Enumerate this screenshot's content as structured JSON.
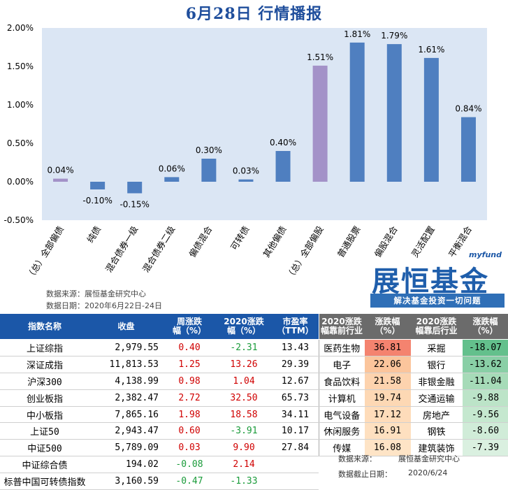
{
  "title": "6月28日  行情播报",
  "chart_data": {
    "type": "bar",
    "categories": [
      "（总）全部偏债",
      "纯债",
      "混合债券一级",
      "混合债券二级",
      "偏债混合",
      "可转债",
      "其他偏债",
      "（总）全部偏股",
      "普通股票",
      "偏股混合",
      "灵活配置",
      "平衡混合"
    ],
    "values": [
      0.04,
      -0.1,
      -0.15,
      0.06,
      0.3,
      0.03,
      0.4,
      1.51,
      1.81,
      1.79,
      1.61,
      0.84
    ],
    "data_labels": [
      "0.04%",
      "-0.10%",
      "-0.15%",
      "0.06%",
      "0.30%",
      "0.03%",
      "0.40%",
      "1.51%",
      "1.81%",
      "1.79%",
      "1.61%",
      "0.84%"
    ],
    "highlight_indices": [
      0,
      7
    ],
    "ylim": [
      -0.5,
      2.0
    ],
    "yticks": [
      2.0,
      1.5,
      1.0,
      0.5,
      0.0,
      -0.5
    ],
    "ytick_labels": [
      "2.00%",
      "1.50%",
      "1.00%",
      "0.50%",
      "0.00%",
      "-0.50%"
    ],
    "colors": {
      "bar": "#4f7fc0",
      "highlight": "#a392c8",
      "plot_bg": "#dbe6f4"
    }
  },
  "source": {
    "line1": "数据来源：展恒基金研究中心",
    "line2": "数据日期：2020年6月22日-24日"
  },
  "logo": {
    "sub": "myfund",
    "brand": "展恒基金",
    "slogan": "解决基金投资一切问题"
  },
  "index_table": {
    "headers": [
      "指数名称",
      "收盘",
      "周涨跌\n幅（%）",
      "2020涨跌\n幅（%）",
      "市盈率\n（TTM）"
    ],
    "rows": [
      {
        "name": "上证综指",
        "close": "2,979.55",
        "week": "0.40",
        "ytd": "-2.31",
        "pe": "13.43"
      },
      {
        "name": "深证成指",
        "close": "11,813.53",
        "week": "1.25",
        "ytd": "13.26",
        "pe": "29.39"
      },
      {
        "name": "沪深300",
        "close": "4,138.99",
        "week": "0.98",
        "ytd": "1.04",
        "pe": "12.67"
      },
      {
        "name": "创业板指",
        "close": "2,382.47",
        "week": "2.72",
        "ytd": "32.50",
        "pe": "65.73"
      },
      {
        "name": "中小板指",
        "close": "7,865.16",
        "week": "1.98",
        "ytd": "18.58",
        "pe": "34.11"
      },
      {
        "name": "上证50",
        "close": "2,943.47",
        "week": "0.60",
        "ytd": "-3.91",
        "pe": "10.17"
      },
      {
        "name": "中证500",
        "close": "5,789.09",
        "week": "0.03",
        "ytd": "9.90",
        "pe": "27.84"
      },
      {
        "name": "中证综合债",
        "close": "194.02",
        "week": "-0.08",
        "ytd": "2.14",
        "pe": ""
      },
      {
        "name": "标普中国可转债指数",
        "close": "3,160.59",
        "week": "-0.47",
        "ytd": "-1.33",
        "pe": ""
      }
    ]
  },
  "industry_table": {
    "headers": [
      "2020涨跌\n幅靠前行业",
      "涨跌幅\n（%）",
      "2020涨跌\n幅靠后行业",
      "涨跌幅\n（%）"
    ],
    "rows": [
      {
        "top": "医药生物",
        "top_val": "36.81",
        "bottom": "采掘",
        "bottom_val": "-18.07"
      },
      {
        "top": "电子",
        "top_val": "22.06",
        "bottom": "银行",
        "bottom_val": "-13.62"
      },
      {
        "top": "食品饮料",
        "top_val": "21.58",
        "bottom": "非银金融",
        "bottom_val": "-11.04"
      },
      {
        "top": "计算机",
        "top_val": "19.74",
        "bottom": "交通运输",
        "bottom_val": "-9.88"
      },
      {
        "top": "电气设备",
        "top_val": "17.12",
        "bottom": "房地产",
        "bottom_val": "-9.56"
      },
      {
        "top": "休闲服务",
        "top_val": "16.91",
        "bottom": "钢铁",
        "bottom_val": "-8.60"
      },
      {
        "top": "传媒",
        "top_val": "16.08",
        "bottom": "建筑装饰",
        "bottom_val": "-7.39"
      }
    ],
    "source_label": "数据来源：",
    "source_value": "展恒基金研究中心",
    "date_label": "数据截止日期：",
    "date_value": "2020/6/24"
  }
}
